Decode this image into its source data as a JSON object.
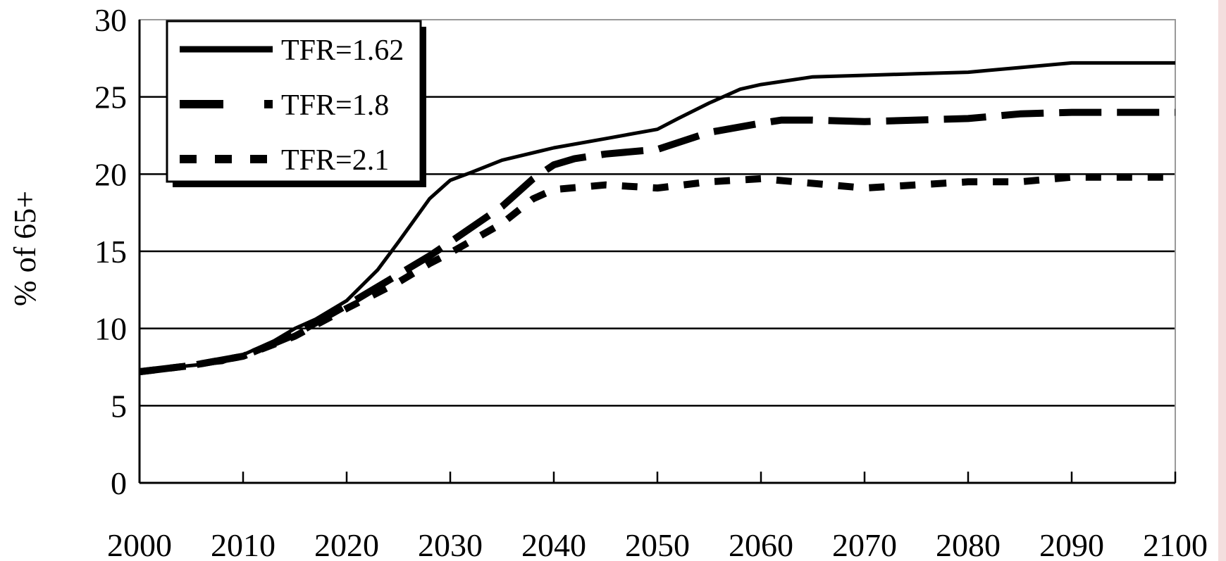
{
  "chart_data": {
    "type": "line",
    "title": "",
    "xlabel": "",
    "ylabel": "% of 65+",
    "xlim": [
      2000,
      2100
    ],
    "ylim": [
      0,
      30
    ],
    "xticks": [
      2000,
      2010,
      2020,
      2030,
      2040,
      2050,
      2060,
      2070,
      2080,
      2090,
      2100
    ],
    "yticks": [
      0,
      5,
      10,
      15,
      20,
      25,
      30
    ],
    "grid": "horizontal",
    "legend_position": "top-left",
    "series": [
      {
        "name": "TFR=1.62",
        "style": "solid",
        "x": [
          2000,
          2002,
          2005,
          2008,
          2010,
          2013,
          2015,
          2017,
          2020,
          2023,
          2025,
          2028,
          2030,
          2032,
          2035,
          2040,
          2045,
          2050,
          2052,
          2055,
          2058,
          2060,
          2065,
          2070,
          2075,
          2080,
          2085,
          2090,
          2095,
          2100
        ],
        "values": [
          7.2,
          7.4,
          7.6,
          7.8,
          8.3,
          9.2,
          10.0,
          10.6,
          11.8,
          13.8,
          15.6,
          18.4,
          19.6,
          20.1,
          20.9,
          21.7,
          22.3,
          22.9,
          23.6,
          24.6,
          25.5,
          25.8,
          26.3,
          26.4,
          26.5,
          26.6,
          26.9,
          27.2,
          27.2,
          27.2
        ]
      },
      {
        "name": "TFR=1.8",
        "style": "long-dash",
        "x": [
          2000,
          2005,
          2010,
          2015,
          2020,
          2025,
          2028,
          2030,
          2035,
          2038,
          2040,
          2042,
          2045,
          2050,
          2055,
          2060,
          2062,
          2065,
          2070,
          2080,
          2085,
          2090,
          2100
        ],
        "values": [
          7.2,
          7.6,
          8.2,
          9.6,
          11.5,
          13.5,
          14.7,
          15.6,
          17.9,
          19.7,
          20.6,
          21.0,
          21.3,
          21.6,
          22.7,
          23.3,
          23.5,
          23.5,
          23.4,
          23.6,
          23.9,
          24.0,
          24.0
        ]
      },
      {
        "name": "TFR=2.1",
        "style": "short-dash",
        "x": [
          2000,
          2005,
          2010,
          2015,
          2020,
          2025,
          2028,
          2030,
          2035,
          2038,
          2040,
          2045,
          2050,
          2055,
          2060,
          2065,
          2070,
          2075,
          2080,
          2085,
          2090,
          2100
        ],
        "values": [
          7.2,
          7.6,
          8.2,
          9.5,
          11.3,
          13.0,
          14.2,
          14.9,
          16.8,
          18.4,
          19.0,
          19.3,
          19.1,
          19.5,
          19.7,
          19.4,
          19.1,
          19.3,
          19.5,
          19.5,
          19.8,
          19.8
        ]
      }
    ]
  }
}
